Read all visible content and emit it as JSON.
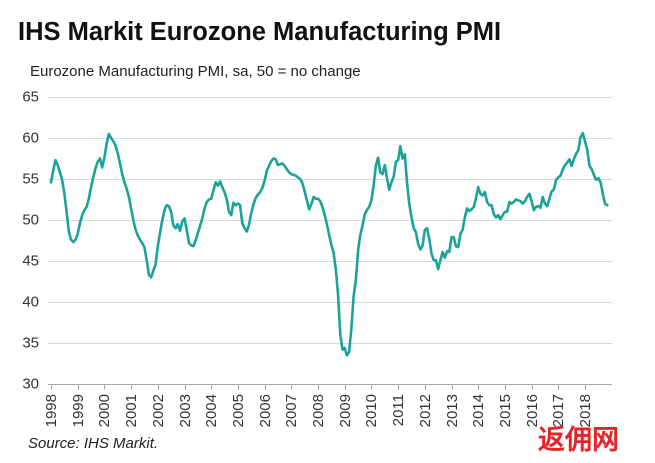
{
  "source": "Source: IHS Markit.",
  "watermark": "返佣网",
  "colors": {
    "line": "#1ba39a",
    "grid": "#d9d9d9",
    "axis": "#a6a6a6",
    "text": "#333333",
    "watermark": "#e8222a"
  },
  "chart_data": {
    "type": "line",
    "title": "IHS Markit Eurozone Manufacturing PMI",
    "subtitle": "Eurozone Manufacturing PMI, sa, 50 = no change",
    "ylim": [
      30,
      65
    ],
    "y_ticks": [
      30,
      35,
      40,
      45,
      50,
      55,
      60,
      65
    ],
    "x_ticks": [
      "1998",
      "1999",
      "2000",
      "2001",
      "2002",
      "2003",
      "2004",
      "2005",
      "2006",
      "2007",
      "2008",
      "2009",
      "2010",
      "2011",
      "2012",
      "2013",
      "2014",
      "2015",
      "2016",
      "2017",
      "2018"
    ],
    "grid": "horizontal",
    "x": [
      "1998-01",
      "1998-02",
      "1998-03",
      "1998-04",
      "1998-05",
      "1998-06",
      "1998-07",
      "1998-08",
      "1998-09",
      "1998-10",
      "1998-11",
      "1998-12",
      "1999-01",
      "1999-02",
      "1999-03",
      "1999-04",
      "1999-05",
      "1999-06",
      "1999-07",
      "1999-08",
      "1999-09",
      "1999-10",
      "1999-11",
      "1999-12",
      "2000-01",
      "2000-02",
      "2000-03",
      "2000-04",
      "2000-05",
      "2000-06",
      "2000-07",
      "2000-08",
      "2000-09",
      "2000-10",
      "2000-11",
      "2000-12",
      "2001-01",
      "2001-02",
      "2001-03",
      "2001-04",
      "2001-05",
      "2001-06",
      "2001-07",
      "2001-08",
      "2001-09",
      "2001-10",
      "2001-11",
      "2001-12",
      "2002-01",
      "2002-02",
      "2002-03",
      "2002-04",
      "2002-05",
      "2002-06",
      "2002-07",
      "2002-08",
      "2002-09",
      "2002-10",
      "2002-11",
      "2002-12",
      "2003-01",
      "2003-02",
      "2003-03",
      "2003-04",
      "2003-05",
      "2003-06",
      "2003-07",
      "2003-08",
      "2003-09",
      "2003-10",
      "2003-11",
      "2003-12",
      "2004-01",
      "2004-02",
      "2004-03",
      "2004-04",
      "2004-05",
      "2004-06",
      "2004-07",
      "2004-08",
      "2004-09",
      "2004-10",
      "2004-11",
      "2004-12",
      "2005-01",
      "2005-02",
      "2005-03",
      "2005-04",
      "2005-05",
      "2005-06",
      "2005-07",
      "2005-08",
      "2005-09",
      "2005-10",
      "2005-11",
      "2005-12",
      "2006-01",
      "2006-02",
      "2006-03",
      "2006-04",
      "2006-05",
      "2006-06",
      "2006-07",
      "2006-08",
      "2006-09",
      "2006-10",
      "2006-11",
      "2006-12",
      "2007-01",
      "2007-02",
      "2007-03",
      "2007-04",
      "2007-05",
      "2007-06",
      "2007-07",
      "2007-08",
      "2007-09",
      "2007-10",
      "2007-11",
      "2007-12",
      "2008-01",
      "2008-02",
      "2008-03",
      "2008-04",
      "2008-05",
      "2008-06",
      "2008-07",
      "2008-08",
      "2008-09",
      "2008-10",
      "2008-11",
      "2008-12",
      "2009-01",
      "2009-02",
      "2009-03",
      "2009-04",
      "2009-05",
      "2009-06",
      "2009-07",
      "2009-08",
      "2009-09",
      "2009-10",
      "2009-11",
      "2009-12",
      "2010-01",
      "2010-02",
      "2010-03",
      "2010-04",
      "2010-05",
      "2010-06",
      "2010-07",
      "2010-08",
      "2010-09",
      "2010-10",
      "2010-11",
      "2010-12",
      "2011-01",
      "2011-02",
      "2011-03",
      "2011-04",
      "2011-05",
      "2011-06",
      "2011-07",
      "2011-08",
      "2011-09",
      "2011-10",
      "2011-11",
      "2011-12",
      "2012-01",
      "2012-02",
      "2012-03",
      "2012-04",
      "2012-05",
      "2012-06",
      "2012-07",
      "2012-08",
      "2012-09",
      "2012-10",
      "2012-11",
      "2012-12",
      "2013-01",
      "2013-02",
      "2013-03",
      "2013-04",
      "2013-05",
      "2013-06",
      "2013-07",
      "2013-08",
      "2013-09",
      "2013-10",
      "2013-11",
      "2013-12",
      "2014-01",
      "2014-02",
      "2014-03",
      "2014-04",
      "2014-05",
      "2014-06",
      "2014-07",
      "2014-08",
      "2014-09",
      "2014-10",
      "2014-11",
      "2014-12",
      "2015-01",
      "2015-02",
      "2015-03",
      "2015-04",
      "2015-05",
      "2015-06",
      "2015-07",
      "2015-08",
      "2015-09",
      "2015-10",
      "2015-11",
      "2015-12",
      "2016-01",
      "2016-02",
      "2016-03",
      "2016-04",
      "2016-05",
      "2016-06",
      "2016-07",
      "2016-08",
      "2016-09",
      "2016-10",
      "2016-11",
      "2016-12",
      "2017-01",
      "2017-02",
      "2017-03",
      "2017-04",
      "2017-05",
      "2017-06",
      "2017-07",
      "2017-08",
      "2017-09",
      "2017-10",
      "2017-11",
      "2017-12",
      "2018-01",
      "2018-02",
      "2018-03",
      "2018-04",
      "2018-05",
      "2018-06",
      "2018-07",
      "2018-08",
      "2018-09",
      "2018-10",
      "2018-11"
    ],
    "series": [
      {
        "values": [
          54.6,
          56.0,
          57.3,
          56.7,
          55.8,
          54.9,
          53.3,
          51.0,
          48.6,
          47.6,
          47.3,
          47.6,
          48.3,
          49.6,
          50.6,
          51.2,
          51.6,
          52.6,
          54.0,
          55.2,
          56.3,
          57.1,
          57.5,
          56.4,
          57.6,
          59.3,
          60.5,
          60.0,
          59.6,
          59.1,
          58.1,
          56.9,
          55.6,
          54.6,
          53.8,
          52.8,
          51.4,
          50.0,
          48.8,
          48.1,
          47.6,
          47.2,
          46.7,
          45.1,
          43.3,
          43.0,
          43.8,
          44.6,
          46.8,
          48.4,
          50.0,
          51.2,
          51.8,
          51.7,
          51.0,
          49.3,
          49.0,
          49.5,
          48.7,
          49.8,
          50.2,
          48.8,
          47.2,
          46.9,
          46.8,
          47.5,
          48.4,
          49.3,
          50.2,
          51.4,
          52.2,
          52.5,
          52.6,
          53.6,
          54.6,
          54.2,
          54.7,
          54.0,
          53.4,
          52.5,
          51.0,
          50.6,
          52.1,
          51.8,
          52.0,
          51.8,
          49.6,
          49.0,
          48.6,
          49.4,
          50.9,
          51.9,
          52.7,
          53.1,
          53.4,
          53.9,
          54.8,
          56.0,
          56.6,
          57.2,
          57.5,
          57.4,
          56.7,
          56.8,
          56.9,
          56.6,
          56.2,
          55.8,
          55.6,
          55.5,
          55.4,
          55.2,
          55.0,
          54.5,
          53.5,
          52.4,
          51.3,
          51.9,
          52.8,
          52.6,
          52.6,
          52.3,
          51.6,
          50.6,
          49.5,
          48.2,
          47.0,
          46.0,
          44.0,
          41.0,
          36.0,
          34.2,
          34.4,
          33.5,
          33.9,
          36.8,
          40.7,
          42.6,
          46.3,
          48.2,
          49.3,
          50.7,
          51.2,
          51.6,
          52.4,
          54.2,
          56.6,
          57.6,
          55.8,
          55.6,
          56.7,
          55.1,
          53.7,
          54.6,
          55.3,
          57.1,
          57.3,
          59.0,
          57.5,
          58.0,
          54.6,
          52.0,
          50.4,
          49.0,
          48.5,
          47.1,
          46.4,
          46.9,
          48.8,
          49.0,
          47.7,
          45.9,
          45.1,
          45.1,
          44.0,
          45.1,
          46.1,
          45.4,
          46.2,
          46.1,
          47.9,
          47.9,
          46.8,
          46.7,
          48.3,
          48.8,
          50.3,
          51.4,
          51.1,
          51.3,
          51.6,
          52.7,
          54.0,
          53.2,
          53.0,
          53.4,
          52.2,
          51.8,
          51.8,
          50.7,
          50.3,
          50.6,
          50.1,
          50.6,
          51.0,
          51.0,
          52.2,
          52.0,
          52.2,
          52.5,
          52.4,
          52.3,
          52.0,
          52.3,
          52.8,
          53.2,
          52.3,
          51.2,
          51.6,
          51.7,
          51.5,
          52.8,
          52.0,
          51.7,
          52.6,
          53.5,
          53.7,
          54.9,
          55.2,
          55.4,
          56.2,
          56.7,
          57.0,
          57.4,
          56.6,
          57.4,
          58.1,
          58.5,
          60.1,
          60.6,
          59.6,
          58.6,
          56.6,
          56.2,
          55.5,
          54.9,
          55.1,
          54.6,
          53.2,
          52.0,
          51.8
        ]
      }
    ]
  }
}
